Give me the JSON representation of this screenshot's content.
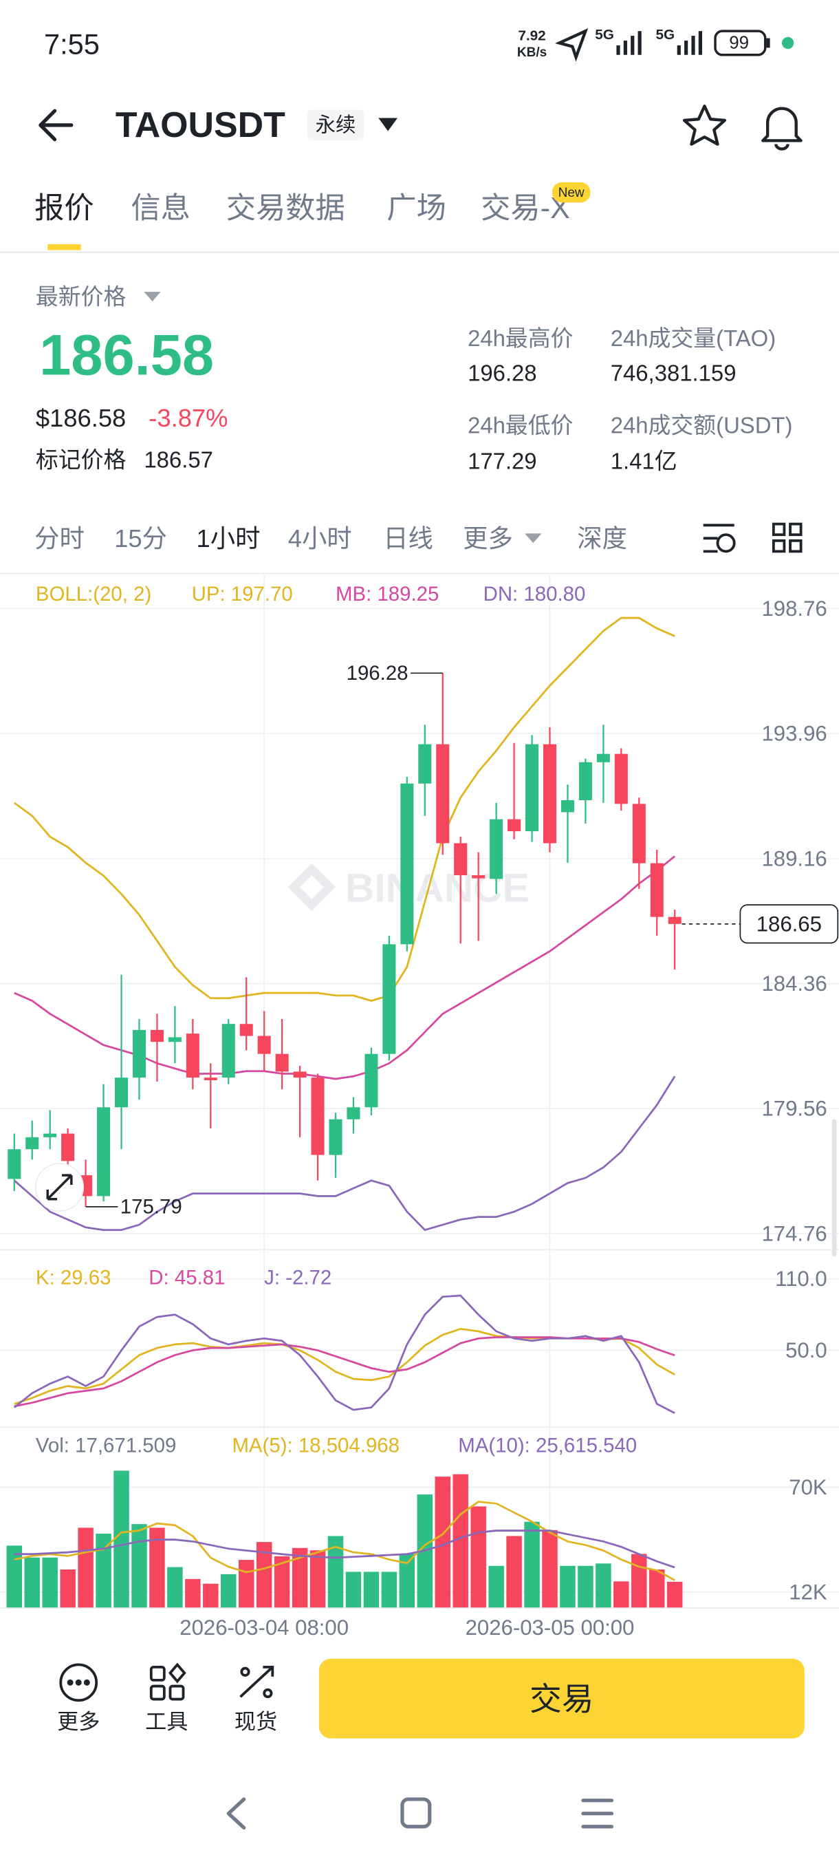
{
  "status_bar": {
    "time": "7:55",
    "speed": "7.92",
    "speed_unit": "KB/s",
    "net1": "5G",
    "net2": "5G",
    "battery": "99"
  },
  "header": {
    "symbol": "TAOUSDT",
    "badge": "永续"
  },
  "tabs": [
    "报价",
    "信息",
    "交易数据",
    "广场",
    "交易-X"
  ],
  "new_badge": "New",
  "price": {
    "label": "最新价格",
    "last": "186.58",
    "usd": "$186.58",
    "change": "-3.87%",
    "mark_label": "标记价格",
    "mark": "186.57"
  },
  "stats": [
    {
      "label": "24h最高价",
      "value": "196.28"
    },
    {
      "label": "24h成交量(TAO)",
      "value": "746,381.159"
    },
    {
      "label": "24h最低价",
      "value": "177.29"
    },
    {
      "label": "24h成交额(USDT)",
      "value": "1.41亿"
    }
  ],
  "intervals": [
    "分时",
    "15分",
    "1小时",
    "4小时",
    "日线",
    "更多",
    "深度"
  ],
  "chart_data": [
    {
      "type": "candlestick",
      "watermark": "BINANCE",
      "legend": {
        "params": "BOLL:(20, 2)",
        "up": "UP: 197.70",
        "mb": "MB: 189.25",
        "dn": "DN: 180.80"
      },
      "open": [
        176.86,
        178.0,
        178.46,
        178.6,
        177.0,
        176.2,
        179.61,
        180.75,
        182.58,
        182.12,
        182.44,
        180.75,
        180.75,
        182.81,
        182.35,
        181.66,
        180.98,
        180.75,
        177.78,
        179.15,
        179.61,
        181.66,
        185.87,
        192.04,
        193.55,
        189.75,
        188.52,
        188.38,
        190.67,
        190.21,
        193.55,
        190.94,
        191.4,
        192.86,
        193.18,
        191.26,
        188.98,
        186.92
      ],
      "high": [
        178.6,
        179.1,
        179.5,
        178.8,
        177.6,
        180.5,
        184.7,
        183.0,
        183.2,
        183.5,
        183.0,
        181.3,
        183.0,
        184.6,
        183.3,
        183.0,
        181.2,
        180.9,
        179.4,
        180.0,
        181.9,
        186.2,
        192.3,
        194.3,
        196.28,
        190.0,
        189.4,
        191.3,
        193.6,
        193.9,
        194.2,
        192.0,
        193.0,
        194.3,
        193.4,
        191.5,
        189.5,
        187.2
      ],
      "low": [
        176.4,
        177.6,
        178.0,
        177.0,
        175.79,
        176.0,
        178.0,
        179.9,
        180.6,
        181.3,
        180.3,
        178.8,
        180.5,
        181.8,
        181.0,
        180.3,
        178.46,
        176.8,
        176.9,
        178.6,
        179.3,
        181.4,
        185.6,
        190.8,
        189.3,
        185.9,
        186.0,
        187.8,
        189.9,
        189.8,
        189.4,
        189.0,
        190.5,
        191.3,
        191.0,
        188.0,
        186.2,
        184.9
      ],
      "close": [
        178.0,
        178.46,
        178.6,
        177.55,
        176.2,
        179.61,
        180.75,
        182.58,
        182.12,
        182.3,
        180.75,
        180.65,
        182.81,
        182.35,
        181.66,
        180.98,
        180.75,
        177.78,
        179.15,
        179.61,
        181.66,
        185.87,
        192.04,
        193.55,
        189.75,
        188.52,
        188.4,
        190.67,
        190.21,
        193.55,
        189.75,
        191.4,
        192.86,
        193.18,
        191.26,
        188.98,
        186.92,
        186.65
      ],
      "series": [
        {
          "color": "#e0b51f",
          "values": [
            191.3,
            190.8,
            190.0,
            189.6,
            189.0,
            188.5,
            187.8,
            187.0,
            186.0,
            185.0,
            184.3,
            183.8,
            183.8,
            183.9,
            184.0,
            184.0,
            184.0,
            184.0,
            183.9,
            183.9,
            183.7,
            183.9,
            185.0,
            187.5,
            190.0,
            191.5,
            192.5,
            193.3,
            194.2,
            195.0,
            195.8,
            196.5,
            197.2,
            197.9,
            198.4,
            198.4,
            198.0,
            197.7
          ]
        },
        {
          "color": "#d6489f",
          "values": [
            184.0,
            183.7,
            183.2,
            182.8,
            182.4,
            182.0,
            181.8,
            181.6,
            181.3,
            181.1,
            180.9,
            180.9,
            180.9,
            181.0,
            181.0,
            180.9,
            180.9,
            180.8,
            180.7,
            180.8,
            181.0,
            181.3,
            181.8,
            182.5,
            183.2,
            183.6,
            184.0,
            184.4,
            184.8,
            185.2,
            185.6,
            186.1,
            186.6,
            187.1,
            187.6,
            188.2,
            188.7,
            189.25
          ]
        },
        {
          "color": "#8a67b8",
          "values": [
            176.8,
            176.2,
            175.6,
            175.3,
            175.0,
            174.9,
            174.9,
            175.1,
            175.6,
            176.0,
            176.3,
            176.3,
            176.3,
            176.3,
            176.3,
            176.3,
            176.3,
            176.2,
            176.2,
            176.5,
            176.8,
            176.6,
            175.6,
            174.9,
            175.1,
            175.3,
            175.4,
            175.4,
            175.6,
            175.9,
            176.3,
            176.7,
            176.9,
            177.3,
            177.9,
            178.8,
            179.7,
            180.8
          ]
        }
      ],
      "up_color": "#2ebd85",
      "down_color": "#f6465d",
      "high_marker": 196.28,
      "low_marker": 175.79,
      "last_price": 186.65,
      "ylim": [
        174.21,
        200.04
      ],
      "yticks": [
        198.76,
        193.96,
        189.16,
        184.36,
        179.56,
        174.76
      ],
      "grid": true
    },
    {
      "type": "line",
      "legend": {
        "k": "K: 29.63",
        "d": "D: 45.81",
        "j": "J: -2.72"
      },
      "series": [
        {
          "color": "#e0b51f",
          "values": [
            5,
            10,
            16,
            20,
            18,
            22,
            34,
            46,
            52,
            55,
            56,
            53,
            52,
            54,
            56,
            55,
            50,
            42,
            32,
            26,
            25,
            28,
            40,
            54,
            63,
            68,
            66,
            62,
            61,
            60,
            61,
            60,
            60,
            59,
            60,
            52,
            38,
            29.63
          ]
        },
        {
          "color": "#d6489f",
          "values": [
            3,
            6,
            10,
            14,
            16,
            18,
            24,
            32,
            40,
            46,
            50,
            52,
            52,
            53,
            54,
            55,
            53,
            50,
            45,
            40,
            35,
            32,
            34,
            40,
            48,
            56,
            60,
            61,
            61,
            61,
            61,
            60,
            60,
            60,
            60,
            57,
            51,
            45.81
          ]
        },
        {
          "color": "#8a67b8",
          "values": [
            2,
            14,
            22,
            28,
            20,
            28,
            50,
            70,
            78,
            80,
            72,
            60,
            55,
            58,
            60,
            58,
            46,
            28,
            8,
            0,
            2,
            18,
            55,
            80,
            95,
            96,
            80,
            66,
            60,
            58,
            60,
            60,
            62,
            58,
            62,
            40,
            5,
            -2.72
          ]
        }
      ],
      "ylim": [
        -14,
        124
      ],
      "yticks": [
        {
          "value": 110,
          "label": "110.0"
        },
        {
          "value": 50,
          "label": "50.0"
        }
      ],
      "grid": true
    },
    {
      "type": "bar",
      "legend": {
        "vol": "Vol: 17,671.509",
        "ma5": "MA(5): 18,504.968",
        "ma10": "MA(10): 25,615.540"
      },
      "categories": [
        null,
        null,
        null,
        null,
        null,
        null,
        null,
        null,
        null,
        null,
        null,
        null,
        null,
        null,
        "2026-03-04 08:00",
        null,
        null,
        null,
        null,
        null,
        null,
        null,
        null,
        null,
        null,
        null,
        null,
        null,
        null,
        null,
        "2026-03-05 00:00",
        null,
        null,
        null,
        null,
        null,
        null,
        null
      ],
      "values": [
        37700,
        31100,
        31100,
        24500,
        47600,
        44300,
        79200,
        49600,
        47600,
        25800,
        19200,
        16600,
        21900,
        29800,
        39700,
        31800,
        36400,
        35100,
        43000,
        23200,
        23200,
        23200,
        33100,
        66000,
        75900,
        77200,
        59400,
        26500,
        43000,
        50900,
        46300,
        26500,
        26500,
        27800,
        17900,
        33100,
        24500,
        17671.509
      ],
      "series": [
        {
          "color": "#e0b51f",
          "values": [
            30000,
            32000,
            33000,
            32000,
            34000,
            35700,
            45000,
            46000,
            50000,
            49000,
            43000,
            31000,
            26000,
            23000,
            25000,
            28000,
            31000,
            34000,
            37000,
            34000,
            33000,
            30000,
            28000,
            38000,
            44000,
            55000,
            62000,
            61000,
            56000,
            51000,
            45000,
            40000,
            38000,
            35000,
            30000,
            26000,
            24000,
            18504.968
          ]
        },
        {
          "color": "#8a67b8",
          "values": [
            33000,
            33000,
            33500,
            34000,
            35000,
            36000,
            38000,
            40000,
            41000,
            41000,
            40000,
            38000,
            36000,
            35000,
            34000,
            33000,
            32000,
            31500,
            31000,
            31500,
            32000,
            32500,
            33000,
            35000,
            38000,
            42000,
            45000,
            46000,
            46000,
            46000,
            46000,
            44000,
            42000,
            40000,
            37000,
            33000,
            29000,
            25615.54
          ]
        }
      ],
      "ylim": [
        3430,
        102300
      ],
      "yticks": [
        {
          "value": 70000,
          "label": "70K"
        },
        {
          "value": 12000,
          "label": "12K"
        }
      ],
      "grid": true
    }
  ],
  "bottom_bar": {
    "buttons": [
      "更多",
      "工具",
      "现货"
    ],
    "trade": "交易"
  }
}
